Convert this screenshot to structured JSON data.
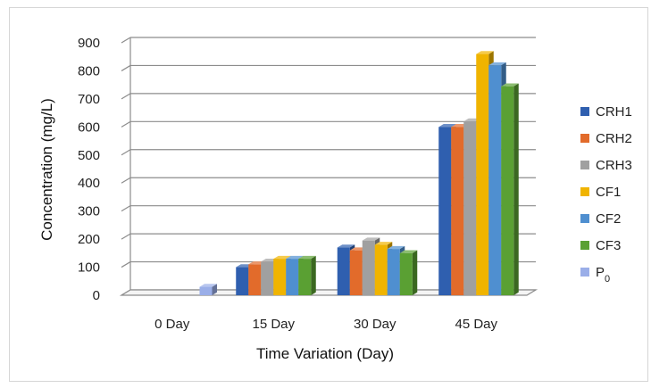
{
  "chart_data": {
    "type": "bar",
    "style": "3d-clustered-column",
    "title": "",
    "xlabel": "Time Variation (Day)",
    "ylabel": "Concentration (mg/L)",
    "ylim": [
      0,
      900
    ],
    "yticks": [
      "0",
      "100",
      "200",
      "300",
      "400",
      "500",
      "600",
      "700",
      "800",
      "900"
    ],
    "grid": true,
    "legend_position": "right",
    "categories": [
      "0 Day",
      "15 Day",
      "30 Day",
      "45 Day"
    ],
    "series": [
      {
        "name": "CRH1",
        "color": "#2f5faf",
        "values": [
          null,
          100,
          170,
          600
        ]
      },
      {
        "name": "CRH2",
        "color": "#e26b2b",
        "values": [
          null,
          110,
          160,
          600
        ]
      },
      {
        "name": "CRH3",
        "color": "#a0a0a0",
        "values": [
          null,
          120,
          195,
          620
        ]
      },
      {
        "name": "CF1",
        "color": "#f0b400",
        "values": [
          null,
          130,
          180,
          860
        ]
      },
      {
        "name": "CF2",
        "color": "#4f8fd0",
        "values": [
          null,
          130,
          165,
          820
        ]
      },
      {
        "name": "CF3",
        "color": "#5aa033",
        "values": [
          null,
          130,
          150,
          745
        ]
      },
      {
        "name": "P",
        "name_subscript": "0",
        "color": "#9aaee8",
        "values": [
          30,
          null,
          null,
          null
        ]
      }
    ]
  }
}
